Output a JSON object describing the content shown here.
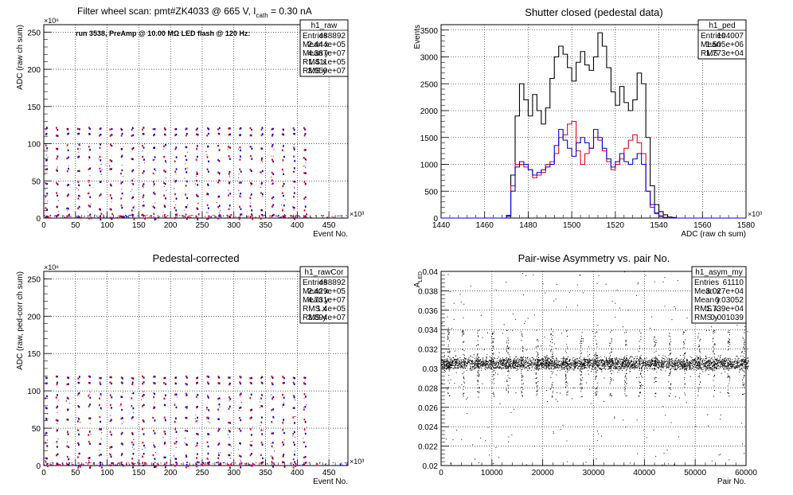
{
  "colors": {
    "red": "#e8001c",
    "blue": "#0000d0",
    "black": "#000000",
    "grid": "#000000"
  },
  "chart_data": [
    {
      "id": "raw",
      "type": "scatter",
      "title": "Filter wheel scan: pmt#ZK4033 @   665 V, I",
      "title_sub": "cath",
      "title_tail": " = 0.30 nA",
      "annotation": "run 3538, PreAmp @ 10.00 MΩ LED flash @  120 Hz:",
      "xlabel": "Event No.",
      "ylabel": "ADC (raw ch sum)",
      "xlim": [
        0,
        480
      ],
      "ylim": [
        0,
        260
      ],
      "x_exponent": "×10³",
      "y_exponent": "×10⁶",
      "x_ticks": [
        "0",
        "50",
        "100",
        "150",
        "200",
        "250",
        "300",
        "350",
        "400",
        "450"
      ],
      "y_ticks": [
        "0",
        "50",
        "100",
        "150",
        "200",
        "250"
      ],
      "grid": true,
      "period": 17,
      "first_x": 4,
      "last_x": 426,
      "levels": [
        120,
        112,
        95,
        80,
        63,
        47,
        30,
        14,
        2
      ],
      "stats": {
        "name": "h1_raw",
        "rows": [
          [
            "Entries",
            "488892"
          ],
          [
            "Mean x",
            "2.444e+05"
          ],
          [
            "Mean y",
            "4.387e+07"
          ],
          [
            "RMS x",
            "1.411e+05"
          ],
          [
            "RMS y",
            "3.959e+07"
          ]
        ]
      }
    },
    {
      "id": "ped",
      "type": "line",
      "title": "Shutter closed (pedestal data)",
      "xlabel": "ADC (raw ch sum)",
      "ylabel": "Events",
      "xlim": [
        1440,
        1580
      ],
      "ylim": [
        0,
        3600
      ],
      "x_exponent": "×10³",
      "x_ticks": [
        "1440",
        "1460",
        "1480",
        "1500",
        "1520",
        "1540",
        "1560",
        "1580"
      ],
      "y_ticks": [
        "0",
        "500",
        "1000",
        "1500",
        "2000",
        "2500",
        "3000",
        "3500"
      ],
      "grid": true,
      "series": [
        {
          "color": "black",
          "x": [
            1440,
            1470,
            1472,
            1474,
            1476,
            1478,
            1480,
            1482,
            1484,
            1486,
            1488,
            1490,
            1492,
            1494,
            1496,
            1498,
            1500,
            1502,
            1504,
            1506,
            1508,
            1510,
            1512,
            1514,
            1516,
            1518,
            1520,
            1522,
            1524,
            1526,
            1528,
            1530,
            1532,
            1534,
            1536,
            1538,
            1540,
            1542,
            1544,
            1546,
            1548,
            1580
          ],
          "y": [
            0,
            50,
            800,
            1900,
            2500,
            2200,
            1900,
            2300,
            2000,
            1750,
            2050,
            2600,
            3000,
            3200,
            3050,
            2800,
            2550,
            2900,
            3100,
            2850,
            2750,
            3000,
            3450,
            3200,
            2800,
            2350,
            2100,
            2450,
            2150,
            2000,
            2200,
            2700,
            2500,
            1500,
            600,
            250,
            120,
            60,
            20,
            10,
            0,
            0
          ]
        },
        {
          "color": "red",
          "x": [
            1440,
            1470,
            1472,
            1474,
            1476,
            1478,
            1480,
            1482,
            1484,
            1486,
            1488,
            1490,
            1492,
            1494,
            1496,
            1498,
            1500,
            1502,
            1504,
            1506,
            1508,
            1510,
            1512,
            1514,
            1516,
            1518,
            1520,
            1522,
            1524,
            1526,
            1528,
            1530,
            1532,
            1534,
            1536,
            1538,
            1540,
            1542,
            1544,
            1580
          ],
          "y": [
            0,
            30,
            600,
            1000,
            1000,
            950,
            900,
            750,
            800,
            850,
            1000,
            1050,
            1200,
            1500,
            1550,
            1750,
            1800,
            1250,
            1000,
            1200,
            1300,
            1500,
            1450,
            1250,
            1050,
            900,
            1000,
            1100,
            1300,
            1450,
            1550,
            1400,
            1200,
            500,
            200,
            80,
            30,
            10,
            0,
            0
          ]
        },
        {
          "color": "blue",
          "x": [
            1440,
            1470,
            1472,
            1474,
            1476,
            1478,
            1480,
            1482,
            1484,
            1486,
            1488,
            1490,
            1492,
            1494,
            1496,
            1498,
            1500,
            1502,
            1504,
            1506,
            1508,
            1510,
            1512,
            1514,
            1516,
            1518,
            1520,
            1522,
            1524,
            1526,
            1528,
            1530,
            1532,
            1534,
            1536,
            1538,
            1540,
            1542,
            1544,
            1580
          ],
          "y": [
            0,
            30,
            500,
            950,
            1050,
            1000,
            900,
            800,
            850,
            900,
            950,
            1000,
            1350,
            1650,
            1450,
            1300,
            1150,
            1400,
            1500,
            1400,
            1300,
            1650,
            1500,
            1300,
            1100,
            950,
            1050,
            1200,
            1050,
            1000,
            1100,
            1200,
            1000,
            500,
            250,
            100,
            40,
            10,
            0,
            0
          ]
        }
      ],
      "stats": {
        "name": "h1_ped",
        "rows": [
          [
            "Entries",
            "104007"
          ],
          [
            "Mean",
            "1.505e+06"
          ],
          [
            "RMS",
            "1.773e+04"
          ]
        ]
      }
    },
    {
      "id": "rawCor",
      "type": "scatter",
      "title": "Pedestal-corrected",
      "xlabel": "Event No.",
      "ylabel": "ADC (raw, ped-corr ch sum)",
      "xlim": [
        0,
        480
      ],
      "ylim": [
        0,
        260
      ],
      "x_exponent": "×10³",
      "y_exponent": "×10⁶",
      "x_ticks": [
        "0",
        "50",
        "100",
        "150",
        "200",
        "250",
        "300",
        "350",
        "400",
        "450"
      ],
      "y_ticks": [
        "0",
        "50",
        "100",
        "150",
        "200",
        "250"
      ],
      "grid": true,
      "period": 17,
      "first_x": 4,
      "last_x": 426,
      "levels": [
        118,
        110,
        93,
        78,
        61,
        45,
        28,
        12,
        1
      ],
      "stats": {
        "name": "h1_rawCor",
        "rows": [
          [
            "Entries",
            "488892"
          ],
          [
            "Mean x",
            "2.429e+05"
          ],
          [
            "Mean y",
            "4.731e+07"
          ],
          [
            "RMS x",
            "1.4e+05"
          ],
          [
            "RMS y",
            "3.894e+07"
          ]
        ]
      }
    },
    {
      "id": "asym",
      "type": "scatter",
      "title": "Pair-wise Asymmetry vs. pair No.",
      "xlabel": "Pair No.",
      "ylabel": "A",
      "ylabel_sub": "LED",
      "xlim": [
        0,
        60000
      ],
      "ylim": [
        0.02,
        0.04
      ],
      "x_ticks": [
        "0",
        "10000",
        "20000",
        "30000",
        "40000",
        "50000",
        "60000"
      ],
      "y_ticks": [
        "0.02",
        "0.022",
        "0.024",
        "0.026",
        "0.028",
        "0.03",
        "0.032",
        "0.034",
        "0.036",
        "0.038",
        "0.04"
      ],
      "grid": true,
      "band_center": 0.0305,
      "band_halfwidth": 0.0006,
      "band_xrange": [
        0,
        60500
      ],
      "spike_period": 2900,
      "spike_start": 1500,
      "stats": {
        "name": "h1_asym_my",
        "rows": [
          [
            "Entries",
            "61110"
          ],
          [
            "Mean x",
            "3.027e+04"
          ],
          [
            "Mean y",
            "0.03052"
          ],
          [
            "RMS x",
            "1.739e+04"
          ],
          [
            "RMS y",
            "0.001039"
          ]
        ]
      }
    }
  ]
}
